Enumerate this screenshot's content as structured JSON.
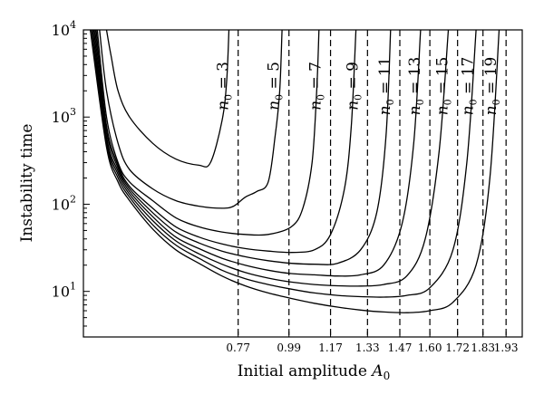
{
  "chart_data": {
    "type": "line",
    "xlabel": "Initial amplitude A₀",
    "ylabel": "Instability time",
    "y_scale": "log",
    "ylim": [
      3,
      10000
    ],
    "xlim": [
      0.1,
      2.0
    ],
    "y_ticks": [
      {
        "value": 10,
        "base": "10",
        "exp": "1"
      },
      {
        "value": 100,
        "base": "10",
        "exp": "2"
      },
      {
        "value": 1000,
        "base": "10",
        "exp": "3"
      },
      {
        "value": 10000,
        "base": "10",
        "exp": "4"
      }
    ],
    "x_tick_labels": [
      "0.77",
      "0.99",
      "1.17",
      "1.33",
      "1.47",
      "1.60",
      "1.72",
      "1.83",
      "1.93"
    ],
    "grid": false,
    "legend": "none",
    "series": [
      {
        "name": "n₀ = 3",
        "label": "n₀ = 3",
        "asymptote": 0.77,
        "x": [
          0.2,
          0.22,
          0.25,
          0.3,
          0.4,
          0.5,
          0.6,
          0.65,
          0.7,
          0.72,
          0.73
        ],
        "y": [
          10000,
          5000,
          2000,
          1000,
          500,
          330,
          280,
          300,
          900,
          2500,
          10000
        ]
      },
      {
        "name": "n₀ = 5",
        "label": "n₀ = 5",
        "asymptote": 0.99,
        "x": [
          0.17,
          0.2,
          0.25,
          0.3,
          0.4,
          0.5,
          0.6,
          0.7,
          0.75,
          0.8,
          0.85,
          0.9,
          0.93,
          0.95,
          0.96
        ],
        "y": [
          10000,
          2000,
          500,
          250,
          150,
          110,
          95,
          90,
          95,
          120,
          140,
          180,
          600,
          2000,
          10000
        ]
      },
      {
        "name": "n₀ = 7",
        "label": "n₀ = 7",
        "asymptote": 1.17,
        "x": [
          0.16,
          0.2,
          0.25,
          0.3,
          0.4,
          0.5,
          0.6,
          0.7,
          0.8,
          0.9,
          1.0,
          1.05,
          1.09,
          1.11,
          1.12
        ],
        "y": [
          10000,
          1000,
          300,
          180,
          110,
          70,
          55,
          48,
          45,
          45,
          55,
          90,
          300,
          2000,
          10000
        ]
      },
      {
        "name": "n₀ = 9",
        "label": "n₀ = 9",
        "asymptote": 1.33,
        "x": [
          0.155,
          0.2,
          0.25,
          0.3,
          0.4,
          0.5,
          0.6,
          0.7,
          0.8,
          0.9,
          1.0,
          1.1,
          1.17,
          1.23,
          1.26,
          1.28
        ],
        "y": [
          10000,
          800,
          280,
          160,
          90,
          55,
          42,
          35,
          31,
          29,
          28,
          30,
          45,
          150,
          800,
          10000
        ]
      },
      {
        "name": "n₀ = 11",
        "label": "n₀ = 11",
        "asymptote": 1.47,
        "x": [
          0.15,
          0.2,
          0.25,
          0.3,
          0.4,
          0.5,
          0.6,
          0.7,
          0.8,
          0.9,
          1.0,
          1.1,
          1.2,
          1.3,
          1.37,
          1.41,
          1.43
        ],
        "y": [
          10000,
          700,
          260,
          150,
          80,
          48,
          36,
          29,
          25,
          22.5,
          21,
          20.5,
          21,
          30,
          80,
          600,
          10000
        ]
      },
      {
        "name": "n₀ = 13",
        "label": "n₀ = 13",
        "asymptote": 1.6,
        "x": [
          0.145,
          0.2,
          0.25,
          0.3,
          0.4,
          0.5,
          0.6,
          0.7,
          0.8,
          0.9,
          1.0,
          1.1,
          1.2,
          1.3,
          1.4,
          1.48,
          1.53,
          1.56
        ],
        "y": [
          10000,
          600,
          240,
          140,
          72,
          42,
          31,
          24,
          20,
          17.5,
          16,
          15.5,
          15,
          15.5,
          20,
          60,
          500,
          10000
        ]
      },
      {
        "name": "n₀ = 15",
        "label": "n₀ = 15",
        "asymptote": 1.72,
        "x": [
          0.14,
          0.2,
          0.25,
          0.3,
          0.4,
          0.5,
          0.6,
          0.7,
          0.8,
          0.9,
          1.0,
          1.1,
          1.2,
          1.3,
          1.4,
          1.5,
          1.58,
          1.64,
          1.68
        ],
        "y": [
          10000,
          550,
          220,
          130,
          65,
          38,
          27,
          20.5,
          16.5,
          14.2,
          12.8,
          12,
          11.6,
          11.5,
          12,
          15,
          40,
          400,
          10000
        ]
      },
      {
        "name": "n₀ = 17",
        "label": "n₀ = 17",
        "asymptote": 1.83,
        "x": [
          0.135,
          0.2,
          0.25,
          0.3,
          0.4,
          0.5,
          0.6,
          0.7,
          0.8,
          0.9,
          1.0,
          1.1,
          1.2,
          1.3,
          1.4,
          1.5,
          1.6,
          1.7,
          1.76,
          1.8
        ],
        "y": [
          10000,
          500,
          200,
          120,
          58,
          34,
          24,
          17.5,
          14,
          12,
          10.6,
          9.6,
          9,
          8.7,
          8.6,
          9,
          11,
          30,
          300,
          10000
        ]
      },
      {
        "name": "n₀ = 19",
        "label": "n₀ = 19",
        "asymptote": 1.93,
        "x": [
          0.13,
          0.2,
          0.25,
          0.3,
          0.4,
          0.5,
          0.6,
          0.7,
          0.8,
          0.9,
          1.0,
          1.1,
          1.2,
          1.3,
          1.4,
          1.5,
          1.6,
          1.7,
          1.8,
          1.86,
          1.9
        ],
        "y": [
          10000,
          450,
          180,
          110,
          52,
          30,
          21,
          15,
          11.6,
          9.6,
          8.3,
          7.3,
          6.6,
          6.1,
          5.8,
          5.7,
          6,
          7.5,
          20,
          200,
          10000
        ]
      }
    ]
  }
}
